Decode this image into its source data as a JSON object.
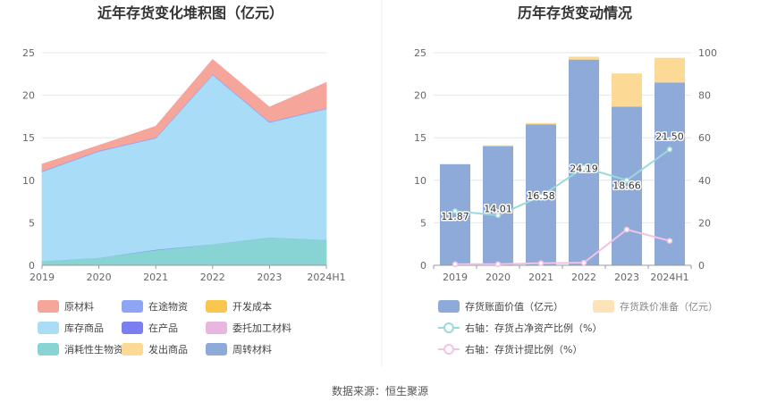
{
  "left_chart": {
    "title": "近年存货变化堆积图（亿元）",
    "y_ticks": [
      "0",
      "5",
      "10",
      "15",
      "20",
      "25"
    ],
    "x_ticks": [
      "2019",
      "2020",
      "2021",
      "2022",
      "2023",
      "2024H1"
    ],
    "legend": [
      {
        "label": "原材料",
        "color": "#f6a59b"
      },
      {
        "label": "在途物资",
        "color": "#8ea5f5"
      },
      {
        "label": "开发成本",
        "color": "#f9c74f"
      },
      {
        "label": "库存商品",
        "color": "#a8dcf7"
      },
      {
        "label": "在产品",
        "color": "#7b7ef0"
      },
      {
        "label": "委托加工材料",
        "color": "#e9b7dd"
      },
      {
        "label": "消耗性生物资产",
        "color": "#88d4d4"
      },
      {
        "label": "发出商品",
        "color": "#fcd995"
      },
      {
        "label": "周转材料",
        "color": "#8eaad8"
      }
    ]
  },
  "right_chart": {
    "title": "历年存货变动情况",
    "y_left_ticks": [
      "0",
      "5",
      "10",
      "15",
      "20",
      "25"
    ],
    "y_right_ticks": [
      "0",
      "20",
      "40",
      "60",
      "80",
      "100"
    ],
    "x_ticks": [
      "2019",
      "2020",
      "2021",
      "2022",
      "2023",
      "2024H1"
    ],
    "bar_labels": [
      "11.87",
      "14.01",
      "16.58",
      "24.19",
      "18.66",
      "21.50"
    ],
    "legend": [
      {
        "label": "存货账面价值（亿元）",
        "color": "#8eaad8",
        "muted": false
      },
      {
        "label": "存货跌价准备（亿元）",
        "color": "#fde4b8",
        "muted": true
      },
      {
        "label": "右轴：存货占净资产比例（%）",
        "color": "#9ad9dc",
        "muted": false
      },
      {
        "label": "右轴：存货计提比例（%）",
        "color": "#f1c3e5",
        "muted": false
      }
    ]
  },
  "footer": {
    "source": "数据来源：恒生聚源"
  },
  "chart_data": [
    {
      "type": "area",
      "title": "近年存货变化堆积图（亿元）",
      "stacked": true,
      "categories": [
        "2019",
        "2020",
        "2021",
        "2022",
        "2023",
        "2024H1"
      ],
      "ylim": [
        0,
        25
      ],
      "grid": true,
      "legend_position": "bottom",
      "series": [
        {
          "name": "消耗性生物资产",
          "values": [
            0.5,
            0.9,
            1.8,
            2.5,
            3.3,
            3.0
          ],
          "color": "#88d4d4"
        },
        {
          "name": "在产品",
          "values": [
            0.0,
            0.0,
            0.05,
            0.0,
            0.0,
            0.0
          ],
          "color": "#7b7ef0"
        },
        {
          "name": "库存商品",
          "values": [
            10.5,
            12.5,
            13.1,
            19.9,
            13.5,
            15.4
          ],
          "color": "#a8dcf7"
        },
        {
          "name": "在途物资",
          "values": [
            0.1,
            0.1,
            0.1,
            0.1,
            0.1,
            0.1
          ],
          "color": "#8ea5f5"
        },
        {
          "name": "原材料",
          "values": [
            0.8,
            0.6,
            1.3,
            1.7,
            1.7,
            3.0
          ],
          "color": "#f6a59b"
        }
      ]
    },
    {
      "type": "bar",
      "title": "历年存货变动情况",
      "stacked": true,
      "categories": [
        "2019",
        "2020",
        "2021",
        "2022",
        "2023",
        "2024H1"
      ],
      "ylim": [
        0,
        25
      ],
      "y2lim": [
        0,
        100
      ],
      "grid": true,
      "legend_position": "bottom",
      "series": [
        {
          "name": "存货账面价值（亿元）",
          "axis": "left",
          "kind": "bar",
          "values": [
            11.87,
            14.01,
            16.58,
            24.19,
            18.66,
            21.5
          ],
          "color": "#8eaad8"
        },
        {
          "name": "存货跌价准备（亿元）",
          "axis": "left",
          "kind": "bar",
          "values": [
            0.05,
            0.1,
            0.15,
            0.35,
            3.9,
            2.9
          ],
          "color": "#fcd995"
        },
        {
          "name": "右轴：存货占净资产比例（%）",
          "axis": "right",
          "kind": "line",
          "values": [
            25.5,
            23.5,
            32.5,
            46.0,
            40.0,
            54.5
          ],
          "color": "#9ad9dc"
        },
        {
          "name": "右轴：存货计提比例（%）",
          "axis": "right",
          "kind": "line",
          "values": [
            0.5,
            0.5,
            1.0,
            1.2,
            16.8,
            11.5
          ],
          "color": "#f1c3e5"
        }
      ]
    }
  ]
}
